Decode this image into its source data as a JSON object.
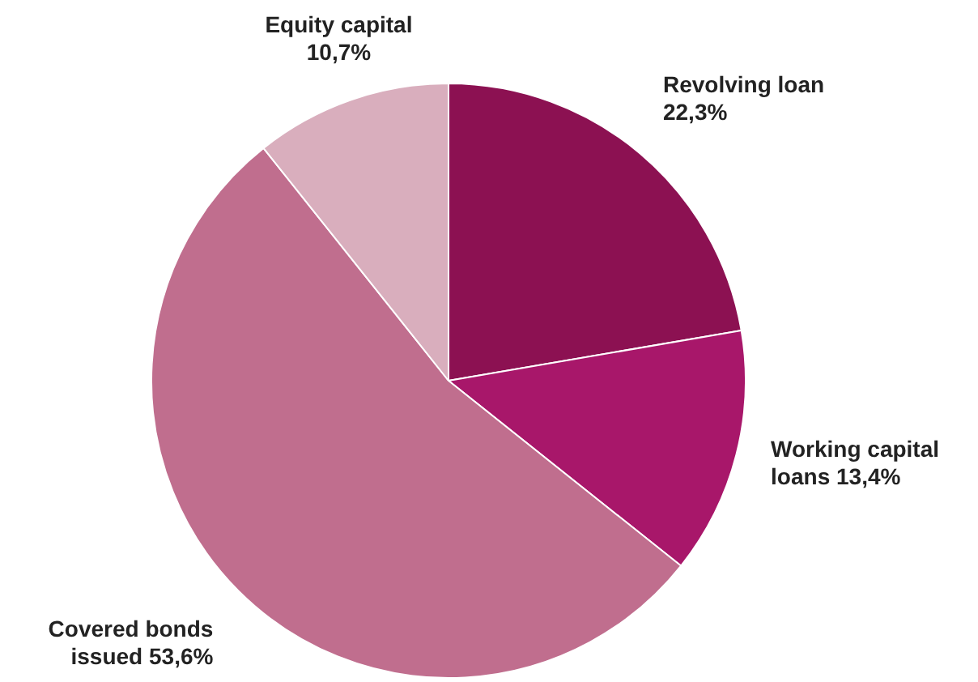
{
  "chart_data": {
    "type": "pie",
    "categories": [
      "Revolving loan",
      "Working capital loans",
      "Covered bonds issued",
      "Equity capital"
    ],
    "values": [
      22.3,
      13.4,
      53.6,
      10.7
    ],
    "value_labels": [
      "22,3%",
      "13,4%",
      "53,6%",
      "10,7%"
    ],
    "colors": [
      "#8c1152",
      "#a8176a",
      "#c06e8e",
      "#d9aebd"
    ],
    "legend": false
  }
}
